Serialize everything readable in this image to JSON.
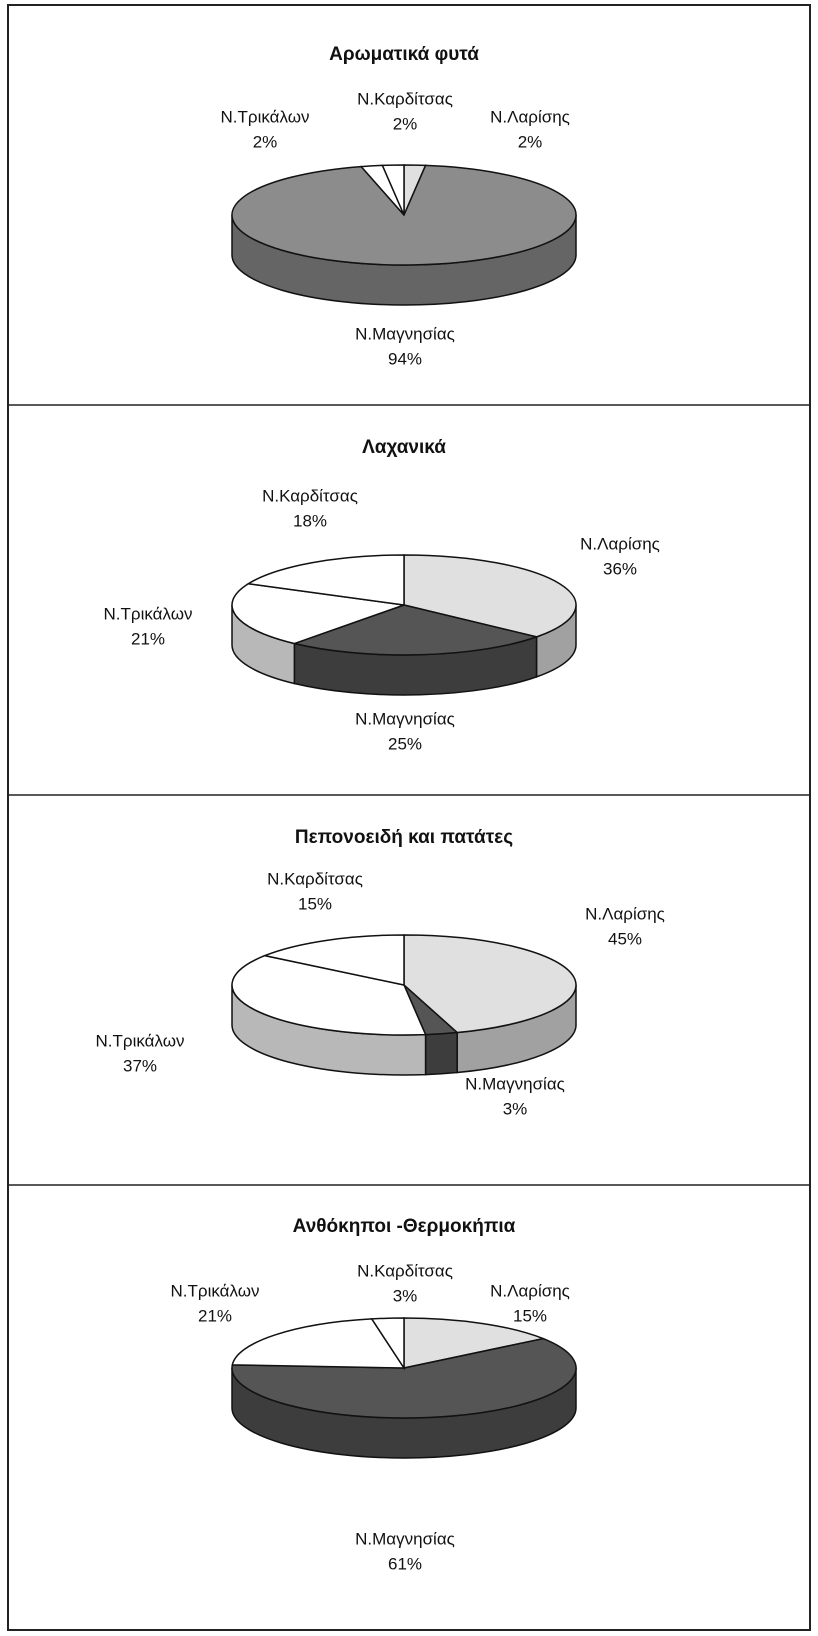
{
  "chart_data": [
    {
      "type": "pie",
      "title": "Αρωματικά φυτά",
      "categories": [
        "Ν.Λαρίσης",
        "Ν.Μαγνησίας",
        "Ν.Τρικάλων",
        "Ν.Καρδίτσας"
      ],
      "values": [
        2,
        94,
        2,
        2
      ],
      "value_labels": [
        "2%",
        "94%",
        "2%",
        "2%"
      ],
      "colors": [
        "#e0e0e0",
        "#8c8c8c",
        "#ffffff",
        "#ffffff"
      ]
    },
    {
      "type": "pie",
      "title": "Λαχανικά",
      "categories": [
        "Ν.Λαρίσης",
        "Ν.Μαγνησίας",
        "Ν.Τρικάλων",
        "Ν.Καρδίτσας"
      ],
      "values": [
        36,
        25,
        21,
        18
      ],
      "value_labels": [
        "36%",
        "25%",
        "21%",
        "18%"
      ],
      "colors": [
        "#e0e0e0",
        "#555555",
        "#ffffff",
        "#ffffff"
      ]
    },
    {
      "type": "pie",
      "title": "Πεπονοειδή και πατάτες",
      "categories": [
        "Ν.Λαρίσης",
        "Ν.Μαγνησίας",
        "Ν.Τρικάλων",
        "Ν.Καρδίτσας"
      ],
      "values": [
        45,
        3,
        37,
        15
      ],
      "value_labels": [
        "45%",
        "3%",
        "37%",
        "15%"
      ],
      "colors": [
        "#e0e0e0",
        "#555555",
        "#ffffff",
        "#ffffff"
      ]
    },
    {
      "type": "pie",
      "title": "Ανθόκηποι -Θερμοκήπια",
      "categories": [
        "Ν.Λαρίσης",
        "Ν.Μαγνησίας",
        "Ν.Τρικάλων",
        "Ν.Καρδίτσας"
      ],
      "values": [
        15,
        61,
        21,
        3
      ],
      "value_labels": [
        "15%",
        "61%",
        "21%",
        "3%"
      ],
      "colors": [
        "#e0e0e0",
        "#555555",
        "#ffffff",
        "#ffffff"
      ]
    }
  ]
}
